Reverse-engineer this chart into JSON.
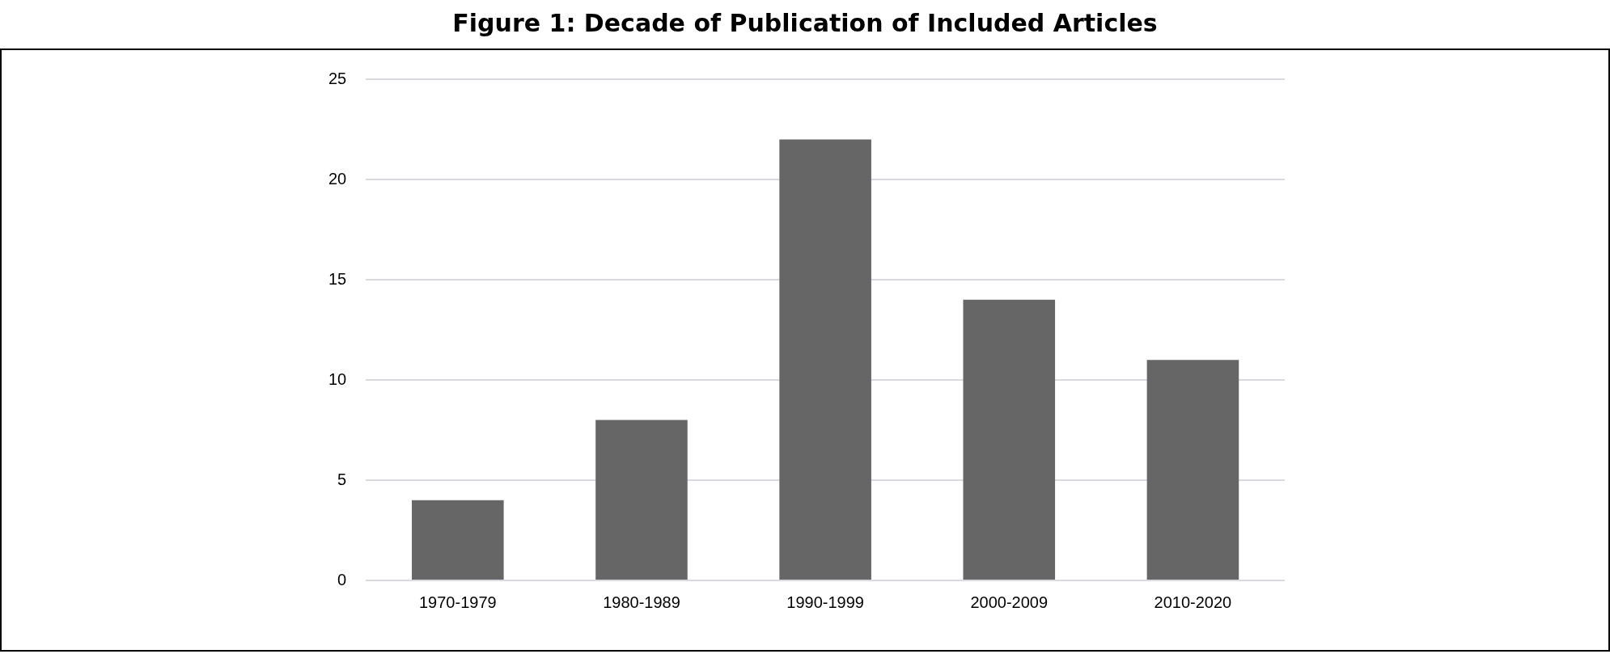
{
  "chart_data": {
    "type": "bar",
    "title": "Figure 1: Decade of Publication of Included Articles",
    "categories": [
      "1970-1979",
      "1980-1989",
      "1990-1999",
      "2000-2009",
      "2010-2020"
    ],
    "values": [
      4,
      8,
      22,
      14,
      11
    ],
    "color": "#666666",
    "ylim": [
      0,
      25
    ],
    "yticks": [
      0,
      5,
      10,
      15,
      20,
      25
    ],
    "grid": "y",
    "legend": false
  }
}
